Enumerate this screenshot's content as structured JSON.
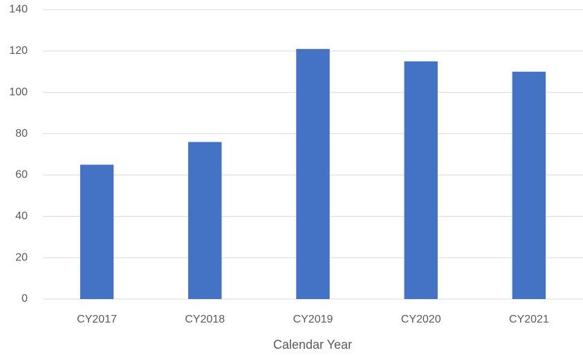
{
  "chart_data": {
    "type": "bar",
    "x_label": "Calendar Year",
    "categories": [
      "CY2017",
      "CY2018",
      "CY2019",
      "CY2020",
      "CY2021"
    ],
    "values": [
      65,
      76,
      121,
      115,
      110
    ],
    "color": "#4472c4",
    "ylim": [
      0,
      140
    ],
    "yticks": [
      0,
      20,
      40,
      60,
      80,
      100,
      120,
      140
    ],
    "grid": true
  }
}
